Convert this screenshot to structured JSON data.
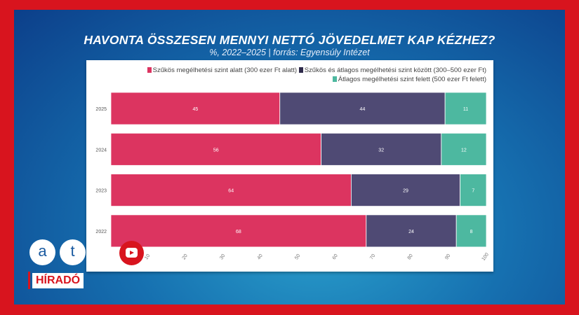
{
  "chart_data": {
    "type": "bar",
    "orientation": "horizontal",
    "stacked": true,
    "title": "HAVONTA ÖSSZESEN MENNYI NETTÓ JÖVEDELMET KAP KÉZHEZ?",
    "subtitle": "%, 2022–2025  |  forrás: Egyensúly Intézet",
    "categories": [
      "2025",
      "2024",
      "2023",
      "2022"
    ],
    "series": [
      {
        "name": "Szűkös megélhetési szint alatt (300 ezer Ft alatt)",
        "color": "#dc3460",
        "values": [
          45,
          56,
          64,
          68
        ]
      },
      {
        "name": "Szűkös és átlagos megélhetési szint között (300–500 ezer Ft)",
        "color": "#4f4a74",
        "values": [
          44,
          32,
          29,
          24
        ]
      },
      {
        "name": "Átlagos megélhetési szint felett (500 ezer Ft felett)",
        "color": "#4db8a0",
        "values": [
          11,
          12,
          7,
          8
        ]
      }
    ],
    "xlim": [
      0,
      100
    ],
    "xticks": [
      "10",
      "20",
      "30",
      "40",
      "50",
      "60",
      "70",
      "80",
      "90",
      "100"
    ],
    "legend": "top-right",
    "grid": false
  },
  "branding": {
    "logo_a": "a",
    "logo_t": "t",
    "show": "HÍRADÓ",
    "colors": {
      "red": "#d8141e"
    }
  }
}
